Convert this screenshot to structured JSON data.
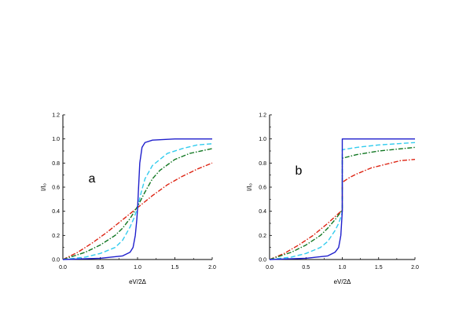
{
  "chart_data": [
    {
      "type": "line",
      "panel_label": "a",
      "xlabel": "eV/2Δ",
      "ylabel": "I/I₀",
      "xlim": [
        0,
        2.0
      ],
      "ylim": [
        0,
        1.2
      ],
      "x_ticks": [
        0.0,
        0.5,
        1.0,
        1.5,
        2.0
      ],
      "x_tick_labels": [
        "0.0",
        "0.5",
        "1.0",
        "1.5",
        "2.0"
      ],
      "y_ticks": [
        0.0,
        0.2,
        0.4,
        0.6,
        0.8,
        1.0,
        1.2
      ],
      "y_tick_labels": [
        "0.0",
        "0.2",
        "0.4",
        "0.6",
        "0.8",
        "1.0",
        "1.2"
      ],
      "grid": false,
      "series": [
        {
          "color": "#1f1fcc",
          "dash": "solid",
          "x": [
            0,
            0.5,
            0.8,
            0.9,
            0.94,
            0.97,
            0.99,
            1.0,
            1.01,
            1.03,
            1.06,
            1.1,
            1.2,
            1.5,
            2.0
          ],
          "y": [
            0.0,
            0.01,
            0.03,
            0.06,
            0.1,
            0.2,
            0.33,
            0.42,
            0.55,
            0.8,
            0.93,
            0.97,
            0.99,
            1.0,
            1.0
          ]
        },
        {
          "color": "#33ccee",
          "dash": "dashed",
          "x": [
            0,
            0.3,
            0.5,
            0.7,
            0.8,
            0.9,
            0.95,
            1.0,
            1.05,
            1.1,
            1.2,
            1.4,
            1.6,
            1.8,
            2.0
          ],
          "y": [
            0.0,
            0.02,
            0.05,
            0.1,
            0.16,
            0.27,
            0.34,
            0.43,
            0.56,
            0.67,
            0.78,
            0.88,
            0.92,
            0.95,
            0.96
          ]
        },
        {
          "color": "#117722",
          "dash": "dashdot",
          "x": [
            0,
            0.3,
            0.5,
            0.7,
            0.8,
            0.9,
            1.0,
            1.1,
            1.2,
            1.3,
            1.5,
            1.7,
            2.0
          ],
          "y": [
            0.0,
            0.06,
            0.12,
            0.2,
            0.26,
            0.34,
            0.44,
            0.56,
            0.67,
            0.74,
            0.83,
            0.88,
            0.92
          ]
        },
        {
          "color": "#dd2211",
          "dash": "dashdot",
          "x": [
            0,
            0.2,
            0.4,
            0.6,
            0.8,
            1.0,
            1.2,
            1.4,
            1.6,
            1.8,
            2.0
          ],
          "y": [
            0.0,
            0.06,
            0.14,
            0.23,
            0.33,
            0.43,
            0.53,
            0.62,
            0.69,
            0.75,
            0.8
          ]
        }
      ]
    },
    {
      "type": "line",
      "panel_label": "b",
      "xlabel": "eV/2Δ",
      "ylabel": "I/I₀",
      "xlim": [
        0,
        2.0
      ],
      "ylim": [
        0,
        1.2
      ],
      "x_ticks": [
        0.0,
        0.5,
        1.0,
        1.5,
        2.0
      ],
      "x_tick_labels": [
        "0.0",
        "0.5",
        "1.0",
        "1.5",
        "2.0"
      ],
      "y_ticks": [
        0.0,
        0.2,
        0.4,
        0.6,
        0.8,
        1.0,
        1.2
      ],
      "y_tick_labels": [
        "0.0",
        "0.2",
        "0.4",
        "0.6",
        "0.8",
        "1.0",
        "1.2"
      ],
      "grid": false,
      "series": [
        {
          "color": "#1f1fcc",
          "dash": "solid",
          "x": [
            0,
            0.5,
            0.8,
            0.9,
            0.95,
            0.98,
            0.995,
            1.0,
            1.0,
            1.2,
            1.5,
            2.0
          ],
          "y": [
            0.0,
            0.01,
            0.03,
            0.06,
            0.1,
            0.2,
            0.35,
            0.4,
            1.0,
            1.0,
            1.0,
            1.0
          ]
        },
        {
          "color": "#33ccee",
          "dash": "dashed",
          "x": [
            0,
            0.3,
            0.5,
            0.7,
            0.8,
            0.9,
            0.95,
            0.99,
            1.0,
            1.0,
            1.2,
            1.5,
            2.0
          ],
          "y": [
            0.0,
            0.02,
            0.05,
            0.1,
            0.15,
            0.24,
            0.3,
            0.37,
            0.4,
            0.91,
            0.93,
            0.95,
            0.97
          ]
        },
        {
          "color": "#117722",
          "dash": "dashdot",
          "x": [
            0,
            0.3,
            0.5,
            0.7,
            0.8,
            0.9,
            1.0,
            1.0,
            1.2,
            1.5,
            2.0
          ],
          "y": [
            0.0,
            0.06,
            0.12,
            0.2,
            0.26,
            0.33,
            0.41,
            0.84,
            0.87,
            0.9,
            0.93
          ]
        },
        {
          "color": "#dd2211",
          "dash": "dashdot",
          "x": [
            0,
            0.2,
            0.4,
            0.6,
            0.8,
            1.0,
            1.0,
            1.1,
            1.2,
            1.4,
            1.6,
            1.8,
            2.0
          ],
          "y": [
            0.0,
            0.05,
            0.12,
            0.2,
            0.3,
            0.41,
            0.64,
            0.68,
            0.71,
            0.76,
            0.79,
            0.82,
            0.83
          ]
        }
      ]
    }
  ]
}
